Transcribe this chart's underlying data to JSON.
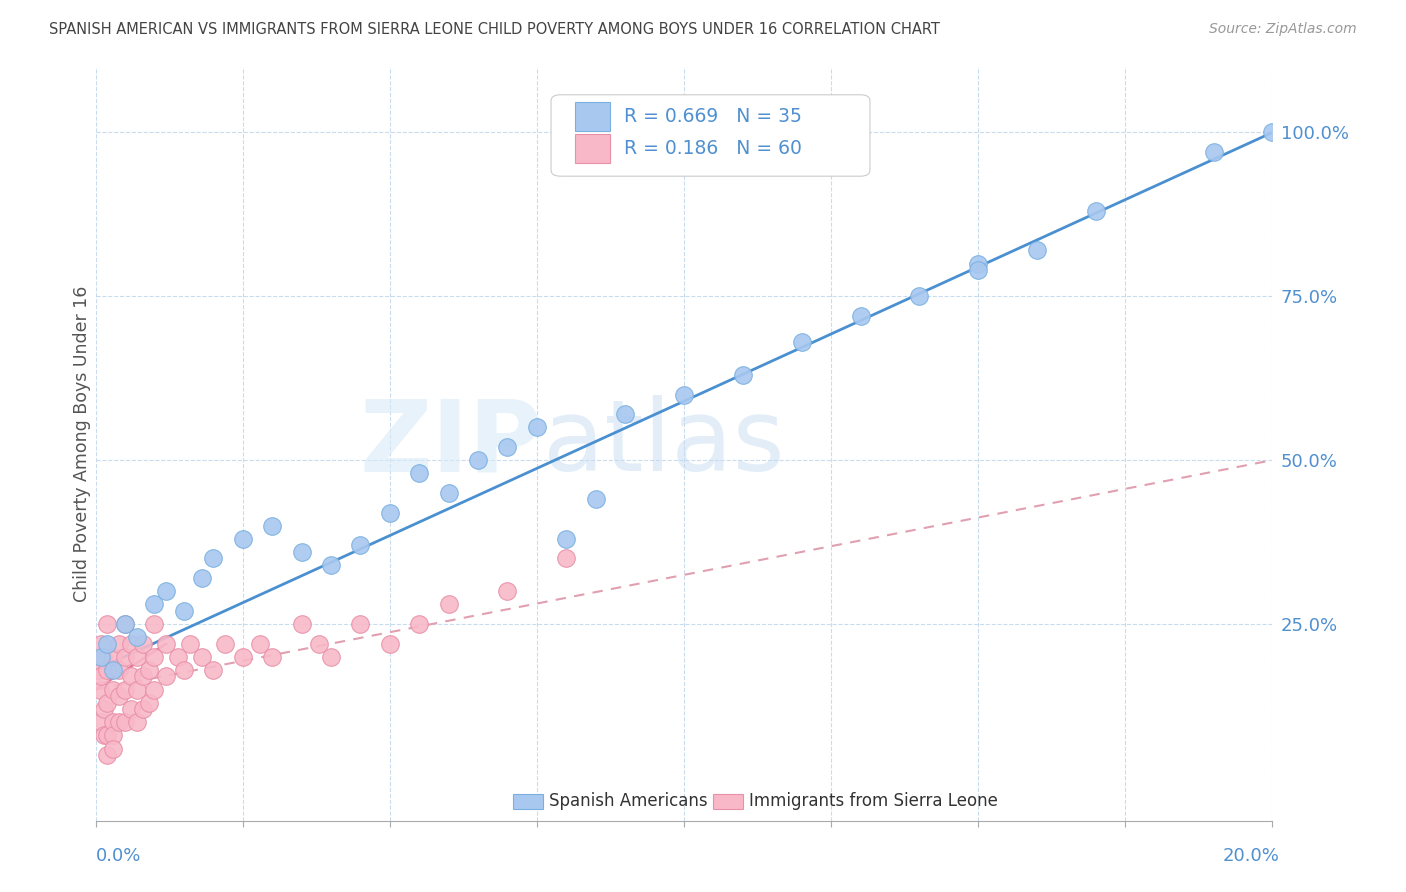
{
  "title": "SPANISH AMERICAN VS IMMIGRANTS FROM SIERRA LEONE CHILD POVERTY AMONG BOYS UNDER 16 CORRELATION CHART",
  "source": "Source: ZipAtlas.com",
  "ylabel": "Child Poverty Among Boys Under 16",
  "ytick_labels": [
    "100.0%",
    "75.0%",
    "50.0%",
    "25.0%"
  ],
  "ytick_values": [
    1.0,
    0.75,
    0.5,
    0.25
  ],
  "xlim": [
    0.0,
    0.2
  ],
  "ylim": [
    -0.05,
    1.1
  ],
  "legend_r1": "R = 0.669",
  "legend_n1": "N = 35",
  "legend_r2": "R = 0.186",
  "legend_n2": "N = 60",
  "series1_color": "#a8c8f0",
  "series1_edge": "#7ab0e0",
  "series2_color": "#f8b8c8",
  "series2_edge": "#e890a8",
  "line1_color": "#4a90d0",
  "line2_color": "#e87090",
  "line2_dashed_color": "#e0a0b0",
  "background_color": "#ffffff",
  "grid_color": "#c8dced",
  "axis_color": "#5090d0",
  "spanish_americans_x": [
    0.001,
    0.002,
    0.003,
    0.005,
    0.007,
    0.01,
    0.012,
    0.015,
    0.018,
    0.02,
    0.025,
    0.03,
    0.035,
    0.04,
    0.045,
    0.05,
    0.055,
    0.06,
    0.065,
    0.07,
    0.075,
    0.08,
    0.085,
    0.09,
    0.1,
    0.11,
    0.12,
    0.13,
    0.14,
    0.15,
    0.16,
    0.17,
    0.15,
    0.19,
    0.2
  ],
  "spanish_americans_y": [
    0.2,
    0.22,
    0.18,
    0.25,
    0.23,
    0.28,
    0.3,
    0.27,
    0.32,
    0.35,
    0.38,
    0.4,
    0.36,
    0.34,
    0.37,
    0.42,
    0.48,
    0.45,
    0.5,
    0.52,
    0.55,
    0.38,
    0.44,
    0.57,
    0.6,
    0.63,
    0.68,
    0.72,
    0.75,
    0.8,
    0.82,
    0.88,
    0.79,
    0.97,
    1.0
  ],
  "sierra_leone_x": [
    0.0005,
    0.0008,
    0.001,
    0.001,
    0.001,
    0.0012,
    0.0015,
    0.0015,
    0.002,
    0.002,
    0.002,
    0.002,
    0.002,
    0.003,
    0.003,
    0.003,
    0.003,
    0.003,
    0.004,
    0.004,
    0.004,
    0.004,
    0.005,
    0.005,
    0.005,
    0.005,
    0.006,
    0.006,
    0.006,
    0.007,
    0.007,
    0.007,
    0.008,
    0.008,
    0.008,
    0.009,
    0.009,
    0.01,
    0.01,
    0.01,
    0.012,
    0.012,
    0.014,
    0.015,
    0.016,
    0.018,
    0.02,
    0.022,
    0.025,
    0.028,
    0.03,
    0.035,
    0.038,
    0.04,
    0.045,
    0.05,
    0.055,
    0.06,
    0.07,
    0.08
  ],
  "sierra_leone_y": [
    0.18,
    0.15,
    0.22,
    0.17,
    0.1,
    0.2,
    0.12,
    0.08,
    0.25,
    0.18,
    0.13,
    0.08,
    0.05,
    0.2,
    0.15,
    0.1,
    0.08,
    0.06,
    0.22,
    0.18,
    0.14,
    0.1,
    0.25,
    0.2,
    0.15,
    0.1,
    0.22,
    0.17,
    0.12,
    0.2,
    0.15,
    0.1,
    0.22,
    0.17,
    0.12,
    0.18,
    0.13,
    0.25,
    0.2,
    0.15,
    0.22,
    0.17,
    0.2,
    0.18,
    0.22,
    0.2,
    0.18,
    0.22,
    0.2,
    0.22,
    0.2,
    0.25,
    0.22,
    0.2,
    0.25,
    0.22,
    0.25,
    0.28,
    0.3,
    0.35
  ],
  "line1_x0": 0.0,
  "line1_y0": 0.18,
  "line1_x1": 0.2,
  "line1_y1": 1.0,
  "line2_solid_x0": 0.0,
  "line2_solid_y0": 0.15,
  "line2_solid_x1": 0.012,
  "line2_solid_y1": 0.22,
  "line2_dash_x0": 0.0,
  "line2_dash_y0": 0.15,
  "line2_dash_x1": 0.2,
  "line2_dash_y1": 0.5
}
